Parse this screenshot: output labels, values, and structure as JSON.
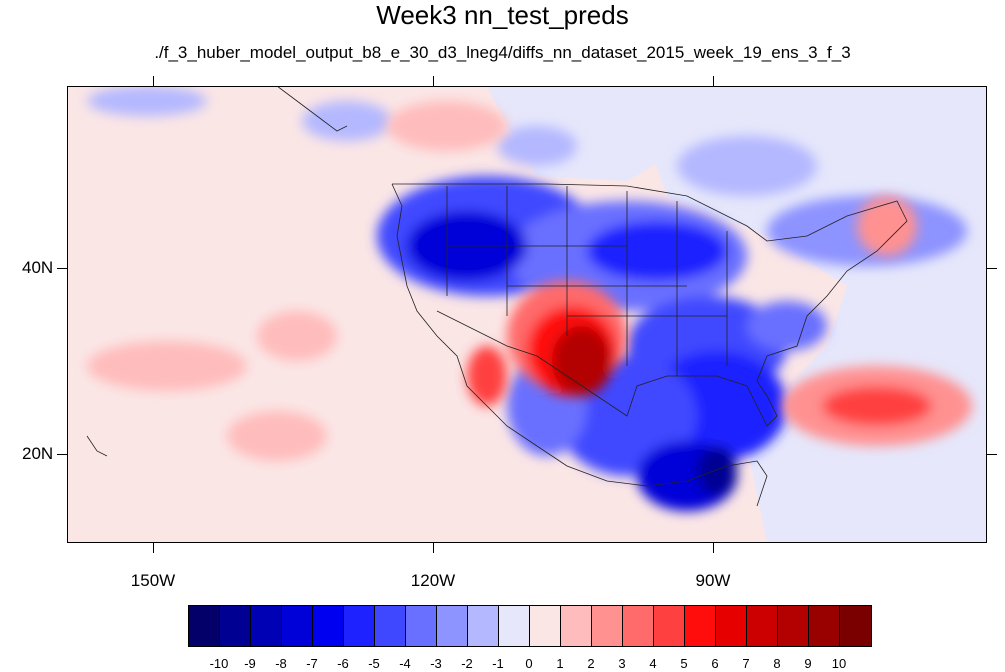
{
  "title": "Week3 nn_test_preds",
  "subtitle": "./f_3_huber_model_output_b8_e_30_d3_lneg4/diffs_nn_dataset_2015_week_19_ens_3_f_3",
  "axes": {
    "lon_labels": [
      "150W",
      "120W",
      "90W"
    ],
    "lat_labels": [
      "40N",
      "20N"
    ]
  },
  "colorbar": {
    "colors": [
      "#03006a",
      "#000093",
      "#0000b5",
      "#0000d8",
      "#0000f0",
      "#1e22ff",
      "#3f48ff",
      "#6970ff",
      "#8d93ff",
      "#b4b8ff",
      "#e6e7fb",
      "#fbe6e6",
      "#ffbcbc",
      "#ff9191",
      "#ff6a6a",
      "#ff4040",
      "#ff0c0c",
      "#e60000",
      "#cc0000",
      "#b30000",
      "#990000",
      "#7a0000"
    ],
    "labels": [
      "-10",
      "-9",
      "-8",
      "-7",
      "-6",
      "-5",
      "-4",
      "-3",
      "-2",
      "-1",
      "0",
      "1",
      "2",
      "3",
      "4",
      "5",
      "6",
      "7",
      "8",
      "9",
      "10"
    ]
  },
  "legend_title": ""
}
